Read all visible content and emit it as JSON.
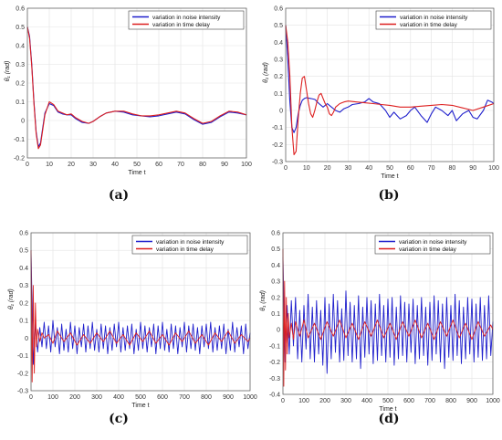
{
  "figure": {
    "panel_labels": [
      "(a)",
      "(b)",
      "(c)",
      "(d)"
    ]
  },
  "chart_data": [
    {
      "type": "line",
      "panel": "(a)",
      "xlabel": "Time t",
      "ylabel": "θ₁ (rad)",
      "xlim": [
        0,
        100
      ],
      "ylim": [
        -0.2,
        0.6
      ],
      "xticks": [
        0,
        10,
        20,
        30,
        40,
        50,
        60,
        70,
        80,
        90,
        100
      ],
      "yticks": [
        -0.2,
        -0.1,
        0,
        0.1,
        0.2,
        0.3,
        0.4,
        0.5,
        0.6
      ],
      "legend_position": "top-right",
      "series": [
        {
          "name": "variation in noise intensity",
          "color": "#1f1fcc",
          "x": [
            0,
            1,
            2,
            3,
            4,
            5,
            6,
            7,
            8,
            10,
            12,
            14,
            16,
            18,
            20,
            22,
            25,
            28,
            30,
            33,
            36,
            40,
            44,
            48,
            52,
            56,
            60,
            64,
            68,
            72,
            76,
            80,
            84,
            88,
            92,
            96,
            100
          ],
          "y": [
            0.5,
            0.45,
            0.3,
            0.1,
            -0.06,
            -0.14,
            -0.12,
            -0.04,
            0.04,
            0.09,
            0.08,
            0.045,
            0.035,
            0.03,
            0.03,
            0.01,
            -0.01,
            -0.015,
            -0.005,
            0.02,
            0.04,
            0.05,
            0.045,
            0.03,
            0.025,
            0.02,
            0.025,
            0.035,
            0.045,
            0.035,
            0.005,
            -0.02,
            -0.01,
            0.02,
            0.045,
            0.04,
            0.03
          ]
        },
        {
          "name": "variation in time delay",
          "color": "#dd1f1f",
          "x": [
            0,
            1,
            2,
            3,
            4,
            5,
            6,
            7,
            8,
            10,
            12,
            14,
            16,
            18,
            20,
            22,
            25,
            28,
            30,
            33,
            36,
            40,
            44,
            48,
            52,
            56,
            60,
            64,
            68,
            72,
            76,
            80,
            84,
            88,
            92,
            96,
            100
          ],
          "y": [
            0.5,
            0.44,
            0.29,
            0.09,
            -0.07,
            -0.15,
            -0.13,
            -0.05,
            0.03,
            0.1,
            0.085,
            0.05,
            0.04,
            0.03,
            0.035,
            0.015,
            -0.005,
            -0.015,
            -0.005,
            0.02,
            0.04,
            0.05,
            0.05,
            0.035,
            0.025,
            0.025,
            0.03,
            0.04,
            0.05,
            0.04,
            0.01,
            -0.015,
            -0.005,
            0.025,
            0.05,
            0.045,
            0.03
          ]
        }
      ]
    },
    {
      "type": "line",
      "panel": "(b)",
      "xlabel": "Time t",
      "ylabel": "θ₁ (rad)",
      "xlim": [
        0,
        100
      ],
      "ylim": [
        -0.3,
        0.6
      ],
      "xticks": [
        0,
        10,
        20,
        30,
        40,
        50,
        60,
        70,
        80,
        90,
        100
      ],
      "yticks": [
        -0.3,
        -0.2,
        -0.1,
        0,
        0.1,
        0.2,
        0.3,
        0.4,
        0.5,
        0.6
      ],
      "legend_position": "top-right",
      "series": [
        {
          "name": "variation in noise intensity",
          "color": "#1f1fcc",
          "x": [
            0,
            1,
            2,
            3,
            4,
            5,
            6,
            7,
            8,
            9,
            10,
            12,
            14,
            16,
            18,
            20,
            22,
            24,
            26,
            28,
            30,
            32,
            35,
            38,
            40,
            42,
            45,
            48,
            50,
            52,
            55,
            58,
            60,
            62,
            65,
            68,
            70,
            72,
            75,
            78,
            80,
            82,
            85,
            88,
            90,
            92,
            95,
            97,
            99,
            100
          ],
          "y": [
            0.5,
            0.3,
            0.05,
            -0.1,
            -0.13,
            -0.1,
            -0.02,
            0.03,
            0.06,
            0.07,
            0.075,
            0.07,
            0.065,
            0.04,
            0.02,
            0.04,
            0.02,
            0.0,
            -0.01,
            0.01,
            0.02,
            0.035,
            0.04,
            0.05,
            0.07,
            0.05,
            0.04,
            0.0,
            -0.04,
            -0.01,
            -0.05,
            -0.03,
            0.0,
            0.02,
            -0.03,
            -0.07,
            -0.02,
            0.02,
            0.0,
            -0.03,
            0.0,
            -0.06,
            -0.02,
            0.0,
            -0.04,
            -0.05,
            0.0,
            0.06,
            0.05,
            0.04
          ]
        },
        {
          "name": "variation in time delay",
          "color": "#dd1f1f",
          "x": [
            0,
            1,
            2,
            3,
            4,
            5,
            6,
            7,
            8,
            9,
            10,
            11,
            12,
            13,
            14,
            15,
            16,
            17,
            18,
            19,
            20,
            21,
            22,
            23,
            24,
            26,
            28,
            30,
            34,
            38,
            42,
            46,
            50,
            55,
            60,
            65,
            70,
            75,
            80,
            85,
            90,
            95,
            100
          ],
          "y": [
            0.5,
            0.4,
            0.2,
            -0.1,
            -0.26,
            -0.24,
            -0.05,
            0.1,
            0.19,
            0.2,
            0.12,
            0.04,
            -0.02,
            -0.04,
            0.0,
            0.05,
            0.09,
            0.1,
            0.07,
            0.04,
            0.02,
            -0.02,
            -0.03,
            -0.01,
            0.02,
            0.04,
            0.05,
            0.055,
            0.05,
            0.045,
            0.04,
            0.035,
            0.03,
            0.02,
            0.02,
            0.025,
            0.03,
            0.035,
            0.03,
            0.015,
            0.0,
            0.02,
            0.04
          ]
        }
      ]
    },
    {
      "type": "line",
      "panel": "(c)",
      "xlabel": "Time t",
      "ylabel": "θ₁ (rad)",
      "xlim": [
        0,
        1000
      ],
      "ylim": [
        -0.3,
        0.6
      ],
      "xticks": [
        0,
        100,
        200,
        300,
        400,
        500,
        600,
        700,
        800,
        900,
        1000
      ],
      "yticks": [
        -0.3,
        -0.2,
        -0.1,
        0,
        0.1,
        0.2,
        0.3,
        0.4,
        0.5,
        0.6
      ],
      "legend_position": "top-right",
      "series": [
        {
          "name": "variation in noise intensity",
          "color": "#1f1fcc",
          "x": [
            0,
            10,
            20,
            30,
            40,
            50,
            60,
            70,
            80,
            90,
            100,
            110,
            120,
            130,
            140,
            150,
            160,
            170,
            180,
            190,
            200,
            210,
            220,
            230,
            240,
            250,
            260,
            270,
            280,
            290,
            300,
            310,
            320,
            330,
            340,
            350,
            360,
            370,
            380,
            390,
            400,
            410,
            420,
            430,
            440,
            450,
            460,
            470,
            480,
            490,
            500,
            510,
            520,
            530,
            540,
            550,
            560,
            570,
            580,
            590,
            600,
            610,
            620,
            630,
            640,
            650,
            660,
            670,
            680,
            690,
            700,
            710,
            720,
            730,
            740,
            750,
            760,
            770,
            780,
            790,
            800,
            810,
            820,
            830,
            840,
            850,
            860,
            870,
            880,
            890,
            900,
            910,
            920,
            930,
            940,
            950,
            960,
            970,
            980,
            990,
            1000
          ],
          "y": [
            0.5,
            -0.15,
            0.08,
            -0.08,
            0.06,
            -0.05,
            0.09,
            -0.06,
            0.07,
            -0.08,
            0.1,
            -0.05,
            0.06,
            -0.09,
            0.08,
            -0.07,
            0.05,
            -0.08,
            0.09,
            -0.06,
            0.07,
            -0.09,
            0.06,
            -0.05,
            0.08,
            -0.08,
            0.07,
            -0.06,
            0.09,
            -0.07,
            0.05,
            -0.08,
            0.08,
            -0.06,
            0.07,
            -0.09,
            0.06,
            -0.07,
            0.08,
            -0.05,
            0.09,
            -0.08,
            0.06,
            -0.07,
            0.07,
            -0.06,
            0.08,
            -0.09,
            0.05,
            -0.07,
            0.09,
            -0.06,
            0.07,
            -0.08,
            0.06,
            -0.05,
            0.08,
            -0.09,
            0.07,
            -0.06,
            0.09,
            -0.07,
            0.05,
            -0.08,
            0.08,
            -0.06,
            0.07,
            -0.09,
            0.06,
            -0.05,
            0.09,
            -0.08,
            0.07,
            -0.06,
            0.08,
            -0.07,
            0.06,
            -0.09,
            0.07,
            -0.05,
            0.08,
            -0.06,
            0.09,
            -0.08,
            0.06,
            -0.07,
            0.07,
            -0.06,
            0.08,
            -0.09,
            0.05,
            -0.07,
            0.09,
            -0.08,
            0.06,
            -0.05,
            0.07,
            -0.09,
            0.08,
            -0.06,
            0.03
          ]
        },
        {
          "name": "variation in time delay",
          "color": "#dd1f1f",
          "x": [
            0,
            5,
            10,
            15,
            20,
            25,
            30,
            40,
            50,
            60,
            80,
            100,
            120,
            150,
            180,
            210,
            240,
            270,
            300,
            330,
            360,
            390,
            420,
            450,
            480,
            510,
            540,
            570,
            600,
            630,
            660,
            690,
            720,
            750,
            780,
            810,
            840,
            870,
            900,
            930,
            960,
            990,
            1000
          ],
          "y": [
            0.5,
            -0.25,
            0.3,
            -0.2,
            0.2,
            -0.05,
            0.05,
            -0.02,
            0.03,
            0.0,
            0.02,
            -0.03,
            0.04,
            -0.02,
            0.03,
            -0.04,
            0.02,
            -0.03,
            0.03,
            -0.02,
            0.04,
            -0.03,
            0.02,
            -0.04,
            0.03,
            -0.02,
            0.04,
            -0.03,
            0.02,
            -0.04,
            0.03,
            -0.02,
            0.04,
            -0.03,
            0.02,
            -0.04,
            0.03,
            -0.02,
            0.04,
            -0.03,
            0.02,
            -0.02,
            0.0
          ]
        }
      ]
    },
    {
      "type": "line",
      "panel": "(d)",
      "xlabel": "Time t",
      "ylabel": "θ₁ (rad)",
      "xlim": [
        0,
        1000
      ],
      "ylim": [
        -0.4,
        0.6
      ],
      "xticks": [
        0,
        100,
        200,
        300,
        400,
        500,
        600,
        700,
        800,
        900,
        1000
      ],
      "yticks": [
        -0.4,
        -0.3,
        -0.2,
        -0.1,
        0,
        0.1,
        0.2,
        0.3,
        0.4,
        0.5,
        0.6
      ],
      "legend_position": "top-right",
      "series": [
        {
          "name": "variation in noise intensity",
          "color": "#1f1fcc",
          "x": [
            0,
            10,
            20,
            30,
            40,
            50,
            60,
            70,
            80,
            90,
            100,
            110,
            120,
            130,
            140,
            150,
            160,
            170,
            180,
            190,
            200,
            210,
            220,
            230,
            240,
            250,
            260,
            270,
            280,
            290,
            300,
            310,
            320,
            330,
            340,
            350,
            360,
            370,
            380,
            390,
            400,
            410,
            420,
            430,
            440,
            450,
            460,
            470,
            480,
            490,
            500,
            510,
            520,
            530,
            540,
            550,
            560,
            570,
            580,
            590,
            600,
            610,
            620,
            630,
            640,
            650,
            660,
            670,
            680,
            690,
            700,
            710,
            720,
            730,
            740,
            750,
            760,
            770,
            780,
            790,
            800,
            810,
            820,
            830,
            840,
            850,
            860,
            870,
            880,
            890,
            900,
            910,
            920,
            930,
            940,
            950,
            960,
            970,
            980,
            990,
            1000
          ],
          "y": [
            0.45,
            -0.2,
            0.15,
            -0.15,
            0.18,
            -0.1,
            0.2,
            -0.18,
            0.12,
            -0.2,
            0.15,
            -0.12,
            0.22,
            -0.18,
            0.14,
            -0.2,
            0.18,
            -0.15,
            0.12,
            -0.22,
            0.2,
            -0.27,
            0.16,
            -0.18,
            0.22,
            -0.14,
            0.18,
            -0.2,
            0.13,
            -0.19,
            0.24,
            -0.16,
            0.17,
            -0.2,
            0.15,
            -0.18,
            0.21,
            -0.24,
            0.14,
            -0.17,
            0.2,
            -0.15,
            0.18,
            -0.21,
            0.16,
            -0.19,
            0.22,
            -0.16,
            0.15,
            -0.2,
            0.19,
            -0.17,
            0.2,
            -0.22,
            0.14,
            -0.18,
            0.21,
            -0.16,
            0.17,
            -0.2,
            0.16,
            -0.14,
            0.19,
            -0.21,
            0.15,
            -0.18,
            0.2,
            -0.16,
            0.14,
            -0.22,
            0.17,
            -0.19,
            0.21,
            -0.15,
            0.18,
            -0.2,
            0.16,
            -0.24,
            0.2,
            -0.17,
            0.15,
            -0.19,
            0.22,
            -0.16,
            0.18,
            -0.21,
            0.14,
            -0.18,
            0.2,
            -0.15,
            0.19,
            -0.2,
            0.16,
            -0.17,
            0.2,
            -0.19,
            0.15,
            -0.18,
            0.21,
            -0.16,
            0.05
          ]
        },
        {
          "name": "variation in time delay",
          "color": "#dd1f1f",
          "x": [
            0,
            4,
            8,
            12,
            16,
            20,
            25,
            30,
            40,
            50,
            60,
            80,
            100,
            120,
            150,
            180,
            210,
            240,
            270,
            300,
            330,
            360,
            390,
            420,
            450,
            480,
            510,
            540,
            570,
            600,
            630,
            660,
            690,
            720,
            750,
            780,
            810,
            840,
            870,
            900,
            930,
            960,
            990,
            1000
          ],
          "y": [
            0.5,
            -0.35,
            0.3,
            -0.25,
            0.2,
            -0.15,
            0.1,
            -0.05,
            0.04,
            -0.06,
            0.05,
            -0.04,
            0.06,
            -0.05,
            0.04,
            -0.06,
            0.05,
            -0.04,
            0.06,
            -0.05,
            0.04,
            -0.06,
            0.05,
            -0.04,
            0.06,
            -0.05,
            0.04,
            -0.06,
            0.05,
            -0.04,
            0.06,
            -0.05,
            0.04,
            -0.06,
            0.05,
            -0.04,
            0.06,
            -0.05,
            0.04,
            -0.06,
            0.05,
            -0.04,
            0.03,
            0.0
          ]
        }
      ]
    }
  ]
}
